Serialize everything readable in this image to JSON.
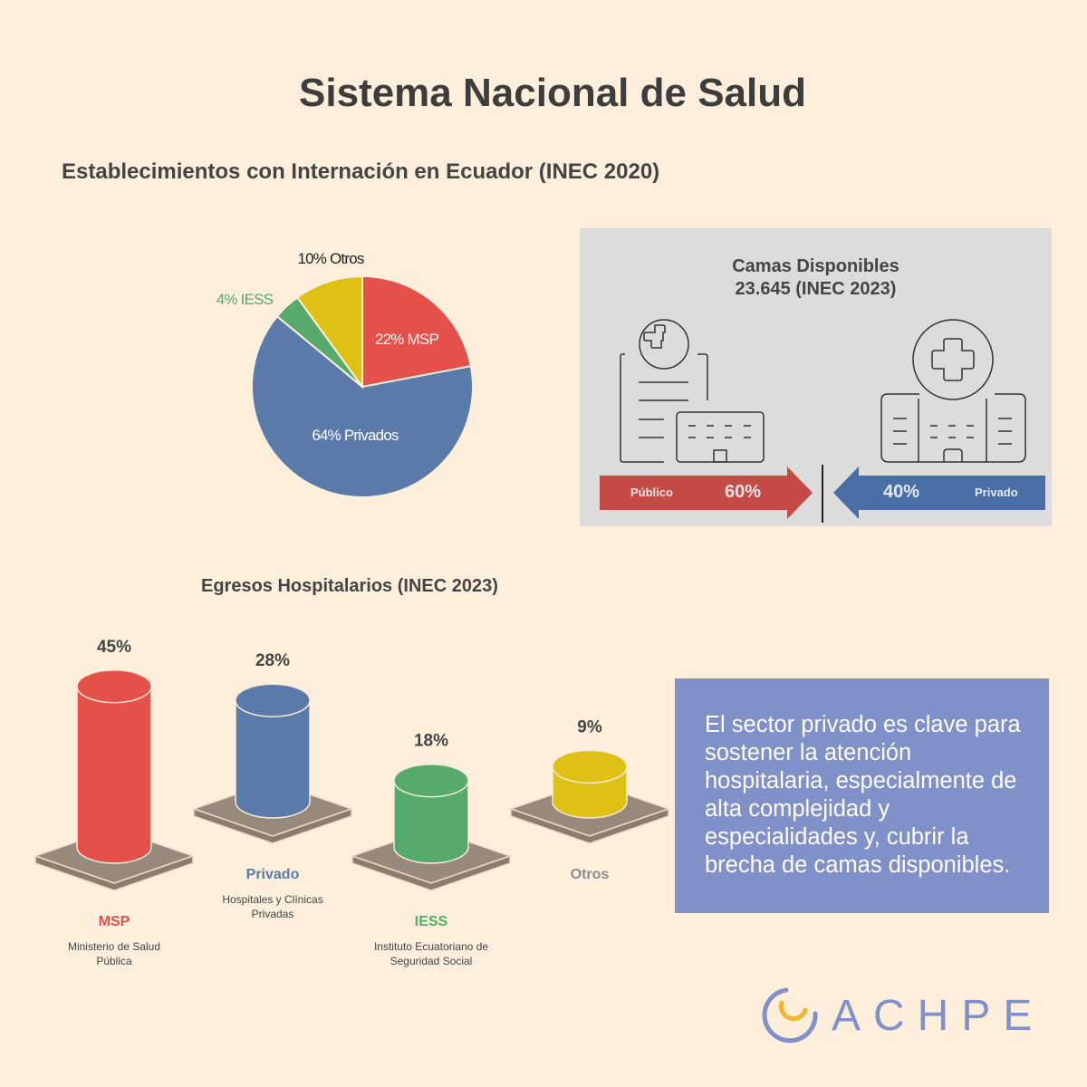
{
  "title": "Sistema Nacional de Salud",
  "pie_section": {
    "title": "Establecimientos con Internación en Ecuador (INEC 2020)"
  },
  "camas": {
    "title_line1": "Camas Disponibles",
    "title_line2": "23.645 (INEC 2023)",
    "publico_label": "Público",
    "publico_value": "60%",
    "privado_label": "Privado",
    "privado_value": "40%",
    "colors": {
      "publico": "#c54b47",
      "privado": "#4a6ea6"
    }
  },
  "bars_section": {
    "title": "Egresos Hospitalarios (INEC 2023)"
  },
  "note": "El sector privado es clave para sostener la atención hospitalaria, especialmente de alta complejidad y especialidades y, cubrir la brecha de camas disponibles.",
  "logo": {
    "text": "ACHPE"
  },
  "chart_data": [
    {
      "type": "pie",
      "title": "Establecimientos con Internación en Ecuador (INEC 2020)",
      "slices": [
        {
          "name": "MSP",
          "value": 22,
          "label": "22% MSP",
          "color": "#e5504a"
        },
        {
          "name": "Privados",
          "value": 64,
          "label": "64% Privados",
          "color": "#5a7aaa"
        },
        {
          "name": "IESS",
          "value": 4,
          "label": "4% IESS",
          "color": "#56ab6c"
        },
        {
          "name": "Otros",
          "value": 10,
          "label": "10% Otros",
          "color": "#dfc116"
        }
      ]
    },
    {
      "type": "bar",
      "title": "Egresos Hospitalarios (INEC 2023)",
      "categories": [
        "MSP",
        "Privado",
        "IESS",
        "Otros"
      ],
      "values": [
        45,
        28,
        18,
        9
      ],
      "value_labels": [
        "45%",
        "28%",
        "18%",
        "9%"
      ],
      "descriptions": [
        "Ministerio de Salud Pública",
        "Hospitales y Clínicas Privadas",
        "Instituto Ecuatoriano de Seguridad Social",
        ""
      ],
      "colors": [
        "#e5504a",
        "#5a7aaa",
        "#56ab6c",
        "#dfc116"
      ]
    }
  ]
}
